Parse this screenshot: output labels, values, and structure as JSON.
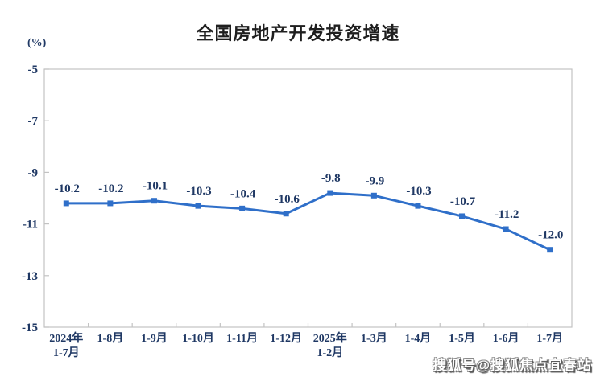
{
  "page": {
    "background_color": "#ffffff"
  },
  "chart": {
    "title": "全国房地产开发投资增速",
    "unit_label": "(%)"
  },
  "watermark": {
    "text": "搜狐号@搜狐焦点宜春站"
  },
  "chart_data": {
    "type": "line",
    "title": "全国房地产开发投资增速",
    "ylabel": "(%)",
    "xlabel": "",
    "categories": [
      "2024年1-7月",
      "1-8月",
      "1-9月",
      "1-10月",
      "1-11月",
      "1-12月",
      "2025年1-2月",
      "1-3月",
      "1-4月",
      "1-5月",
      "1-6月",
      "1-7月"
    ],
    "x_tick_display_lines": [
      [
        "2024年",
        "1-7月"
      ],
      [
        "1-8月"
      ],
      [
        "1-9月"
      ],
      [
        "1-10月"
      ],
      [
        "1-11月"
      ],
      [
        "1-12月"
      ],
      [
        "2025年",
        "1-2月"
      ],
      [
        "1-3月"
      ],
      [
        "1-4月"
      ],
      [
        "1-5月"
      ],
      [
        "1-6月"
      ],
      [
        "1-7月"
      ]
    ],
    "values": [
      -10.2,
      -10.2,
      -10.1,
      -10.3,
      -10.4,
      -10.6,
      -9.8,
      -9.9,
      -10.3,
      -10.7,
      -11.2,
      -12.0
    ],
    "point_labels": [
      "-10.2",
      "-10.2",
      "-10.1",
      "-10.3",
      "-10.4",
      "-10.6",
      "-9.8",
      "-9.9",
      "-10.3",
      "-10.7",
      "-11.2",
      "-12.0"
    ],
    "ylim": [
      -15,
      -5
    ],
    "yticks": [
      -5,
      -7,
      -9,
      -11,
      -13,
      -15
    ],
    "grid": false,
    "legend_position": "none",
    "line_color": "#2F6FC9",
    "marker": "square",
    "label_text_color": "#1F3864",
    "axis_box_color": "#C3C3C3"
  }
}
